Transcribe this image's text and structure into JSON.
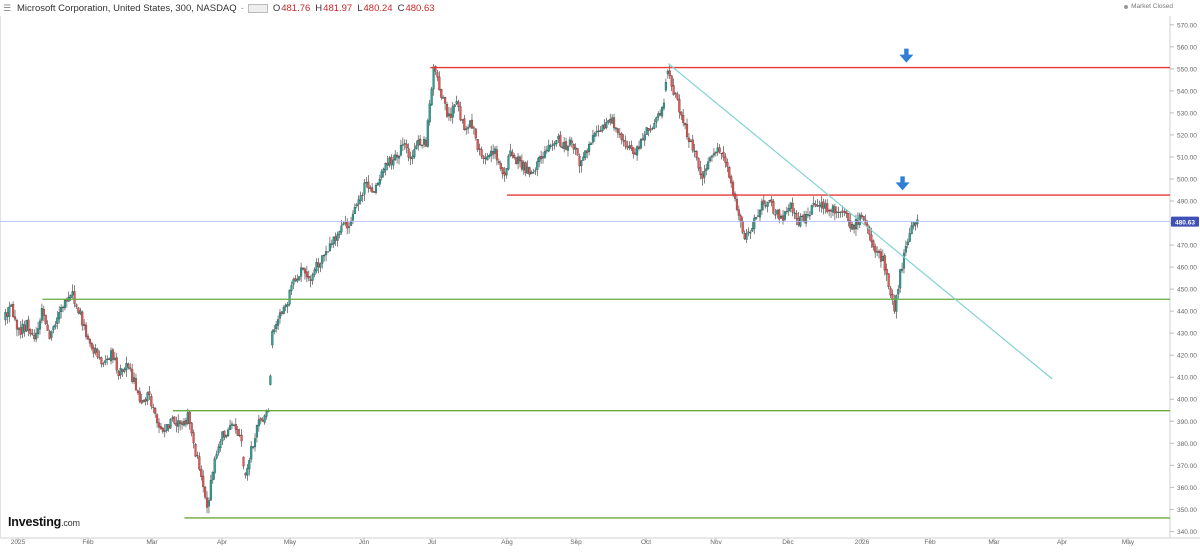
{
  "header": {
    "title": "Microsoft Corporation, United States, 300, NASDAQ",
    "separator": "-",
    "ohlc": [
      {
        "label": "O",
        "value": "481.76"
      },
      {
        "label": "H",
        "value": "481.97"
      },
      {
        "label": "L",
        "value": "480.24"
      },
      {
        "label": "C",
        "value": "480.63"
      }
    ]
  },
  "status": {
    "label": "Market Closed"
  },
  "brand": {
    "name": "Investing",
    "suffix": ".com"
  },
  "colors": {
    "up": "#26a69a",
    "down": "#ef5350",
    "resistance": "#e53935",
    "support": "#6aaa3c",
    "trendline": "#7fd3cf",
    "price_line": "#aab8ff",
    "arrow": "#2f7ed8"
  },
  "chart_data": {
    "type": "candlestick",
    "title": "Microsoft Corporation, United States, 300, NASDAQ",
    "y_ticks": [
      "340.00",
      "350.00",
      "360.00",
      "370.00",
      "380.00",
      "390.00",
      "400.00",
      "410.00",
      "420.00",
      "430.00",
      "440.00",
      "450.00",
      "460.00",
      "470.00",
      "480.00",
      "490.00",
      "500.00",
      "510.00",
      "520.00",
      "530.00",
      "540.00",
      "550.00",
      "560.00",
      "570.00"
    ],
    "ylim": [
      337,
      574
    ],
    "x_ticks": [
      "2025",
      "Feb",
      "Mar",
      "Apr",
      "May",
      "Jun",
      "Jul",
      "Aug",
      "Sep",
      "Oct",
      "Nov",
      "Dec",
      "2026",
      "Feb",
      "Mar",
      "Apr",
      "May"
    ],
    "current_price": "480.63",
    "price_path": [
      [
        0,
        436
      ],
      [
        2,
        441
      ],
      [
        4,
        430
      ],
      [
        6,
        434
      ],
      [
        8,
        427
      ],
      [
        10,
        440
      ],
      [
        12,
        429
      ],
      [
        14,
        437
      ],
      [
        16,
        445
      ],
      [
        18,
        447
      ],
      [
        20,
        438
      ],
      [
        22,
        425
      ],
      [
        24,
        421
      ],
      [
        26,
        416
      ],
      [
        28,
        421
      ],
      [
        30,
        412
      ],
      [
        32,
        416
      ],
      [
        34,
        408
      ],
      [
        36,
        397
      ],
      [
        38,
        402
      ],
      [
        40,
        389
      ],
      [
        42,
        385
      ],
      [
        44,
        392
      ],
      [
        46,
        387
      ],
      [
        48,
        392
      ],
      [
        50,
        376
      ],
      [
        52,
        362
      ],
      [
        53,
        351
      ],
      [
        55,
        371
      ],
      [
        57,
        385
      ],
      [
        58,
        384
      ],
      [
        60,
        390
      ],
      [
        62,
        379
      ],
      [
        63,
        364
      ],
      [
        64,
        374
      ],
      [
        66,
        387
      ],
      [
        68,
        394
      ],
      [
        69,
        394
      ],
      [
        70,
        430
      ],
      [
        72,
        437
      ],
      [
        74,
        445
      ],
      [
        76,
        455
      ],
      [
        78,
        460
      ],
      [
        80,
        455
      ],
      [
        82,
        462
      ],
      [
        84,
        466
      ],
      [
        86,
        473
      ],
      [
        88,
        478
      ],
      [
        90,
        479
      ],
      [
        92,
        488
      ],
      [
        94,
        497
      ],
      [
        96,
        494
      ],
      [
        98,
        500
      ],
      [
        100,
        507
      ],
      [
        102,
        509
      ],
      [
        104,
        515
      ],
      [
        106,
        511
      ],
      [
        108,
        517
      ],
      [
        110,
        516
      ],
      [
        112,
        552
      ],
      [
        114,
        538
      ],
      [
        116,
        528
      ],
      [
        118,
        535
      ],
      [
        120,
        522
      ],
      [
        122,
        525
      ],
      [
        124,
        512
      ],
      [
        126,
        508
      ],
      [
        128,
        513
      ],
      [
        130,
        501
      ],
      [
        132,
        512
      ],
      [
        134,
        508
      ],
      [
        136,
        505
      ],
      [
        138,
        503
      ],
      [
        140,
        510
      ],
      [
        142,
        514
      ],
      [
        144,
        519
      ],
      [
        146,
        515
      ],
      [
        148,
        517
      ],
      [
        150,
        508
      ],
      [
        152,
        514
      ],
      [
        154,
        519
      ],
      [
        156,
        524
      ],
      [
        158,
        527
      ],
      [
        160,
        523
      ],
      [
        162,
        514
      ],
      [
        164,
        512
      ],
      [
        166,
        517
      ],
      [
        168,
        523
      ],
      [
        170,
        527
      ],
      [
        172,
        535
      ],
      [
        173,
        550
      ],
      [
        174,
        542
      ],
      [
        176,
        532
      ],
      [
        178,
        521
      ],
      [
        180,
        511
      ],
      [
        182,
        500
      ],
      [
        184,
        509
      ],
      [
        186,
        513
      ],
      [
        188,
        507
      ],
      [
        190,
        493
      ],
      [
        192,
        482
      ],
      [
        193,
        473
      ],
      [
        195,
        478
      ],
      [
        197,
        487
      ],
      [
        199,
        490
      ],
      [
        201,
        485
      ],
      [
        203,
        482
      ],
      [
        205,
        487
      ],
      [
        207,
        480
      ],
      [
        209,
        483
      ],
      [
        211,
        488
      ],
      [
        213,
        489
      ],
      [
        215,
        485
      ],
      [
        217,
        487
      ],
      [
        219,
        484
      ],
      [
        221,
        478
      ],
      [
        223,
        482
      ],
      [
        225,
        477
      ],
      [
        227,
        468
      ],
      [
        229,
        463
      ],
      [
        231,
        448
      ],
      [
        232,
        441
      ],
      [
        233,
        452
      ],
      [
        235,
        470
      ],
      [
        237,
        479
      ],
      [
        238,
        480.6
      ]
    ],
    "lines": [
      {
        "name": "resistance-upper",
        "kind": "horizontal",
        "level": 550.6,
        "from_day": 111,
        "color": "resistance"
      },
      {
        "name": "resistance-lower",
        "kind": "horizontal",
        "level": 492.7,
        "from_day": 131,
        "color": "resistance"
      },
      {
        "name": "support-upper",
        "kind": "horizontal",
        "level": 445.4,
        "from_day": 10,
        "color": "support"
      },
      {
        "name": "support-middle",
        "kind": "horizontal",
        "level": 394.8,
        "from_day": 44,
        "color": "support"
      },
      {
        "name": "support-lower",
        "kind": "horizontal",
        "level": 346.1,
        "from_day": 47,
        "color": "support"
      },
      {
        "name": "trendline",
        "kind": "diagonal",
        "from": [
          173,
          552.4
        ],
        "to": [
          273,
          409.2
        ],
        "color": "trendline"
      }
    ],
    "arrows": [
      {
        "name": "arrow-down-upper",
        "day": 235,
        "price": 556
      },
      {
        "name": "arrow-down-lower",
        "day": 234,
        "price": 498
      }
    ]
  }
}
